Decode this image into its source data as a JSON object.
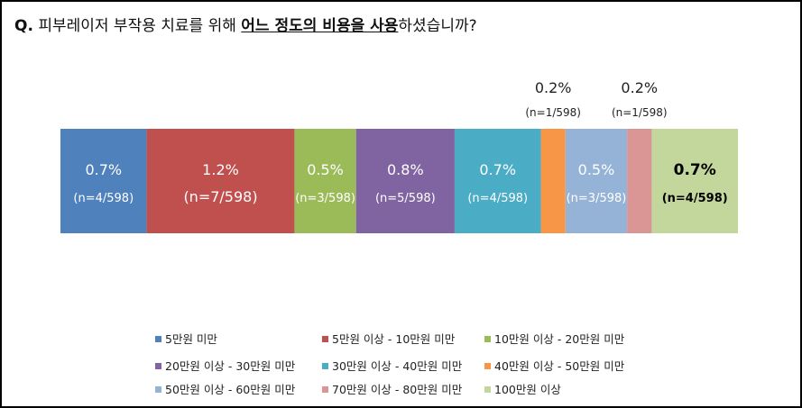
{
  "question": {
    "prefix": "Q.",
    "before": " 피부레이저 부작용 치료를 위해 ",
    "highlight": "어느 정도의 비용을 사용",
    "after": "하셨습니까?"
  },
  "chart_data": {
    "type": "bar",
    "orientation": "horizontal-stacked",
    "series": [
      {
        "name": "5만원 미만",
        "value": 0.7,
        "label": "0.7%",
        "n_label": "(n=4/598)",
        "color": "#4f81bd",
        "label_position": "inside",
        "bold": false
      },
      {
        "name": "5만원 이상 - 10만원 미만",
        "value": 1.2,
        "label": "1.2%",
        "n_label": "(n=7/598)",
        "color": "#c0504d",
        "label_position": "inside",
        "bold": false
      },
      {
        "name": "10만원 이상 - 20만원 미만",
        "value": 0.5,
        "label": "0.5%",
        "n_label": "(n=3/598)",
        "color": "#9bbb59",
        "label_position": "inside",
        "bold": false
      },
      {
        "name": "20만원 이상 - 30만원 미만",
        "value": 0.8,
        "label": "0.8%",
        "n_label": "(n=5/598)",
        "color": "#8064a2",
        "label_position": "inside",
        "bold": false
      },
      {
        "name": "30만원 이상 - 40만원 미만",
        "value": 0.7,
        "label": "0.7%",
        "n_label": "(n=4/598)",
        "color": "#4bacc6",
        "label_position": "inside",
        "bold": false
      },
      {
        "name": "40만원 이상 - 50만원 미만",
        "value": 0.2,
        "label": "0.2%",
        "n_label": "(n=1/598)",
        "color": "#f79646",
        "label_position": "above",
        "bold": false
      },
      {
        "name": "50만원 이상 - 60만원 미만",
        "value": 0.5,
        "label": "0.5%",
        "n_label": "(n=3/598)",
        "color": "#95b3d7",
        "label_position": "inside",
        "bold": false
      },
      {
        "name": "70만원 이상 - 80만원 미만",
        "value": 0.2,
        "label": "0.2%",
        "n_label": "(n=1/598)",
        "color": "#d99694",
        "label_position": "above",
        "bold": false
      },
      {
        "name": "100만원 이상",
        "value": 0.7,
        "label": "0.7%",
        "n_label": "(n=4/598)",
        "color": "#c3d69b",
        "label_position": "inside",
        "bold": true
      }
    ],
    "legend_position": "bottom",
    "grid": false
  }
}
